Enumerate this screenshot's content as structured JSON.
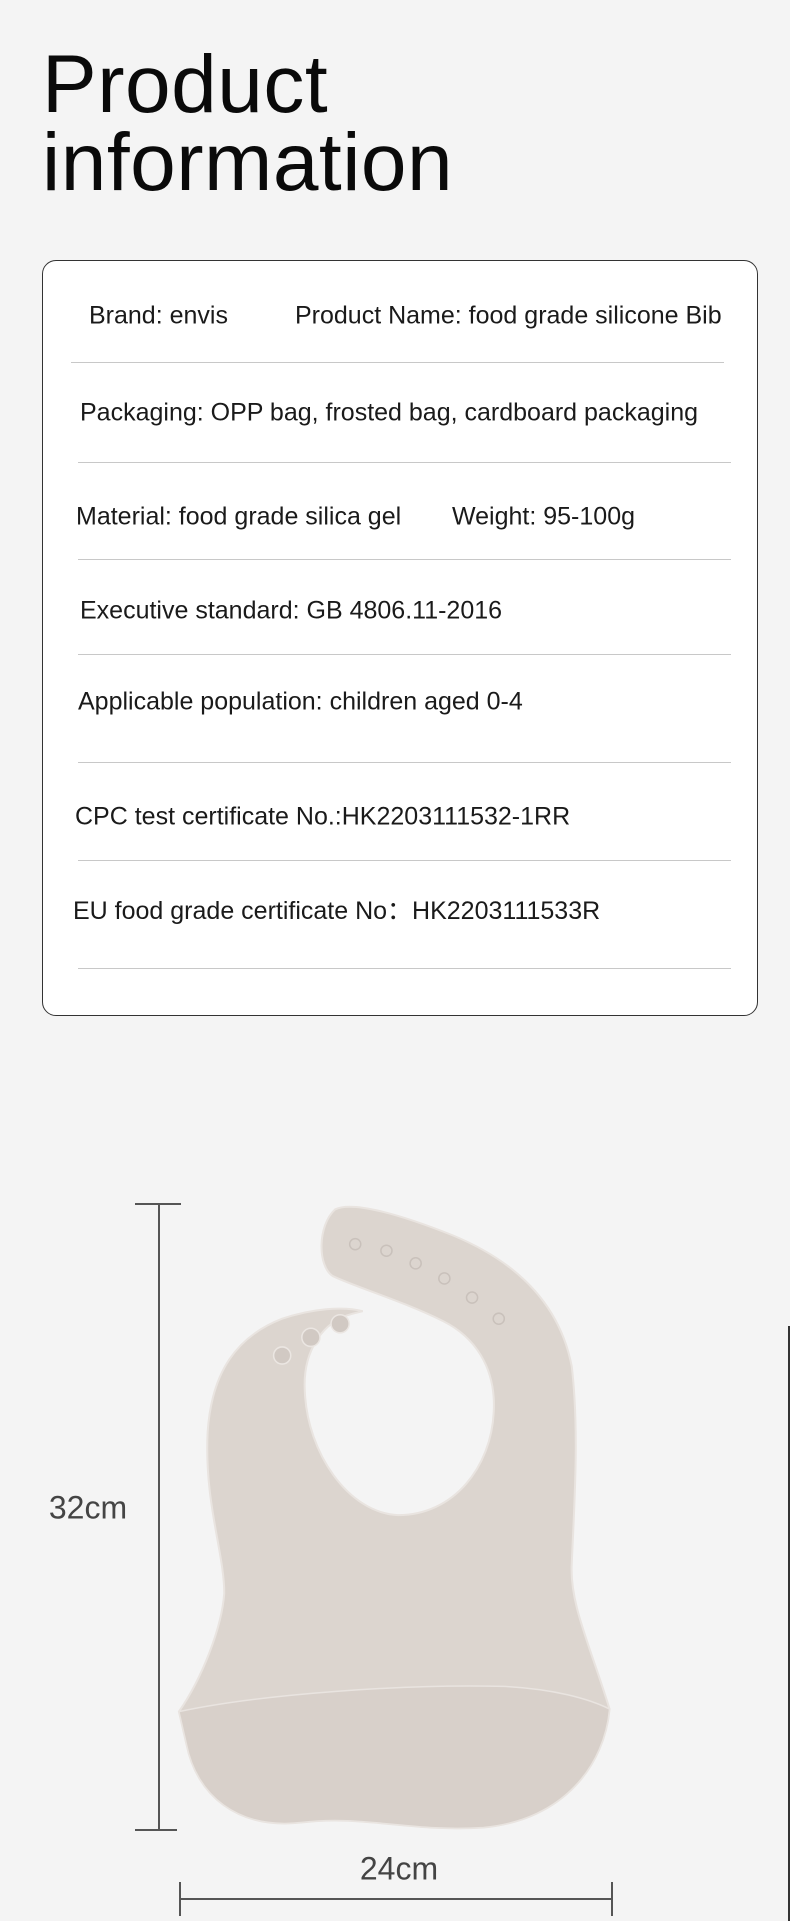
{
  "heading": {
    "line1": "Product",
    "line2": "information"
  },
  "info": {
    "brand": "Brand: envis",
    "product_name": "Product Name: food grade silicone Bib",
    "packaging": "Packaging: OPP bag, frosted bag, cardboard packaging",
    "material": "Material: food grade silica gel",
    "weight": "Weight: 95-100g",
    "standard": "Executive standard: GB 4806.11-2016",
    "population": "Applicable population: children aged 0-4",
    "cpc": "CPC test certificate No.:HK2203111532-1RR",
    "eu": "EU food grade certificate No：HK2203111533R"
  },
  "dimensions": {
    "height": "32cm",
    "width": "24cm"
  },
  "colors": {
    "bib": "#dcd5cf",
    "background": "#f4f4f4"
  }
}
